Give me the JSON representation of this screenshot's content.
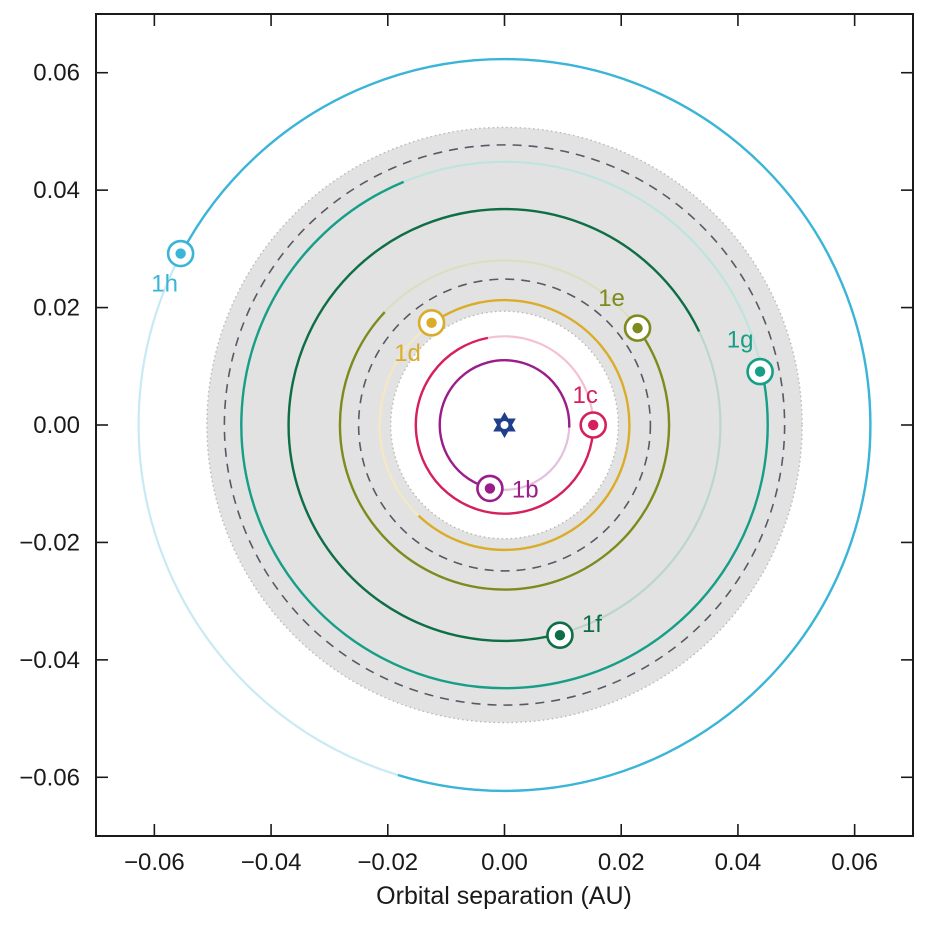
{
  "chart_data": {
    "type": "scatter",
    "title": "",
    "xlabel": "Orbital separation (AU)",
    "ylabel": "",
    "xlim": [
      -0.07,
      0.07
    ],
    "ylim": [
      -0.07,
      0.07
    ],
    "x_ticks": [
      -0.06,
      -0.04,
      -0.02,
      0.0,
      0.02,
      0.04,
      0.06
    ],
    "x_tick_labels": [
      "−0.06",
      "−0.04",
      "−0.02",
      "0.00",
      "0.02",
      "0.04",
      "0.06"
    ],
    "y_ticks": [
      0.06,
      0.04,
      0.02,
      0.0,
      -0.02,
      -0.04,
      -0.06
    ],
    "y_tick_labels": [
      "0.06",
      "0.04",
      "0.02",
      "0.00",
      "−0.02",
      "−0.04",
      "−0.06"
    ],
    "grid": false,
    "star": {
      "x": 0.0,
      "y": 0.0,
      "color": "#1f3f8a"
    },
    "habitable_zone": {
      "inner_radius": 0.0195,
      "outer_radius": 0.051,
      "color": "#e2e2e2"
    },
    "habitable_zone_dashed_radii": [
      0.025,
      0.048
    ],
    "planets": [
      {
        "name": "1b",
        "x": -0.0025,
        "y": -0.0108,
        "orbit_radius": 0.0111,
        "color": "#9b1d8a"
      },
      {
        "name": "1c",
        "x": 0.0152,
        "y": 0.0,
        "orbit_radius": 0.0152,
        "color": "#d5205c"
      },
      {
        "name": "1d",
        "x": -0.0125,
        "y": 0.0174,
        "orbit_radius": 0.0214,
        "color": "#d9ad2b"
      },
      {
        "name": "1e",
        "x": 0.0228,
        "y": 0.0165,
        "orbit_radius": 0.0282,
        "color": "#7f8a1e"
      },
      {
        "name": "1f",
        "x": 0.0095,
        "y": -0.0358,
        "orbit_radius": 0.037,
        "color": "#0e6e45"
      },
      {
        "name": "1g",
        "x": 0.0438,
        "y": 0.0091,
        "orbit_radius": 0.0451,
        "color": "#169e87"
      },
      {
        "name": "1h",
        "x": -0.0555,
        "y": 0.0292,
        "orbit_radius": 0.0627,
        "color": "#3ab5d8"
      }
    ]
  }
}
